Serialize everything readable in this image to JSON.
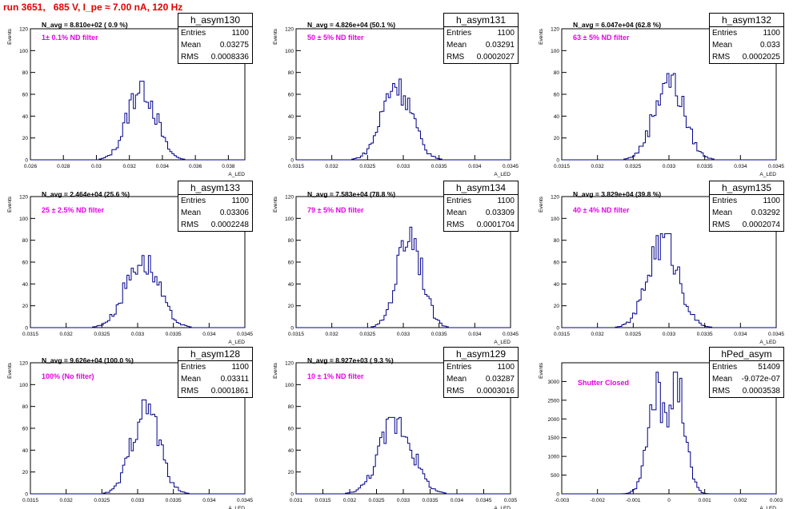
{
  "header": {
    "run_title": "run 3651,   685 V, I_pe ≈ 7.00 nA, 120 Hz"
  },
  "common": {
    "ylabel": "Events",
    "xlabel": "A_LED"
  },
  "colors": {
    "histogram": "#00008b",
    "title": "#e00000",
    "filter_label": "#e600e6"
  },
  "stats_keys": {
    "entries": "Entries",
    "mean": "Mean",
    "rms": "RMS"
  },
  "panels": [
    {
      "name": "h_asym130",
      "navg": "N_avg = 8.810e+02 ( 0.9 %)",
      "filter": "1± 0.1% ND filter",
      "entries": "1100",
      "mean": "0.03275",
      "rms": "0.0008336"
    },
    {
      "name": "h_asym131",
      "navg": "N_avg = 4.826e+04 (50.1 %)",
      "filter": "50 ± 5% ND filter",
      "entries": "1100",
      "mean": "0.03291",
      "rms": "0.0002027"
    },
    {
      "name": "h_asym132",
      "navg": "N_avg = 6.047e+04 (62.8 %)",
      "filter": "63 ± 5% ND filter",
      "entries": "1100",
      "mean": "0.033",
      "rms": "0.0002025"
    },
    {
      "name": "h_asym133",
      "navg": "N_avg = 2.464e+04 (25.6 %)",
      "filter": "25 ± 2.5% ND filter",
      "entries": "1100",
      "mean": "0.03306",
      "rms": "0.0002248"
    },
    {
      "name": "h_asym134",
      "navg": "N_avg = 7.583e+04 (78.8 %)",
      "filter": "79 ± 5% ND filter",
      "entries": "1100",
      "mean": "0.03309",
      "rms": "0.0001704"
    },
    {
      "name": "h_asym135",
      "navg": "N_avg = 3.829e+04 (39.8 %)",
      "filter": "40 ± 4% ND filter",
      "entries": "1100",
      "mean": "0.03292",
      "rms": "0.0002074"
    },
    {
      "name": "h_asym128",
      "navg": "N_avg = 9.626e+04 (100.0 %)",
      "filter": "100% (No filter)",
      "entries": "1100",
      "mean": "0.03311",
      "rms": "0.0001861"
    },
    {
      "name": "h_asym129",
      "navg": "N_avg = 8.927e+03 ( 9.3 %)",
      "filter": "10 ± 1% ND filter",
      "entries": "1100",
      "mean": "0.03287",
      "rms": "0.0003016"
    },
    {
      "name": "hPed_asym",
      "navg": "",
      "filter": "Shutter Closed",
      "entries": "51409",
      "mean": "-9.072e-07",
      "rms": "0.0003538"
    }
  ],
  "chart_data": [
    {
      "type": "bar",
      "title": "h_asym130",
      "xlim": [
        0.026,
        0.039
      ],
      "ylim": [
        0,
        120
      ],
      "xticks": [
        "0.026",
        "0.028",
        "0.03",
        "0.032",
        "0.034",
        "0.036",
        "0.038"
      ],
      "xtick_values": [
        0.026,
        0.028,
        0.03,
        0.032,
        0.034,
        0.036,
        0.038
      ],
      "yticks": [
        "0",
        "20",
        "40",
        "60",
        "80",
        "100",
        "120"
      ],
      "ytick_values": [
        0,
        20,
        40,
        60,
        80,
        100,
        120
      ],
      "series": [
        {
          "mean": 0.03275,
          "rms": 0.0008336,
          "peak": 72,
          "entries": 1100
        }
      ]
    },
    {
      "type": "bar",
      "title": "h_asym131",
      "xlim": [
        0.0315,
        0.0345
      ],
      "ylim": [
        0,
        120
      ],
      "xticks": [
        "0.0315",
        "0.032",
        "0.0325",
        "0.033",
        "0.0335",
        "0.034",
        "0.0345"
      ],
      "xtick_values": [
        0.0315,
        0.032,
        0.0325,
        0.033,
        0.0335,
        0.034,
        0.0345
      ],
      "yticks": [
        "0",
        "20",
        "40",
        "60",
        "80",
        "100",
        "120"
      ],
      "ytick_values": [
        0,
        20,
        40,
        60,
        80,
        100,
        120
      ],
      "series": [
        {
          "mean": 0.03291,
          "rms": 0.0002027,
          "peak": 74,
          "entries": 1100
        }
      ]
    },
    {
      "type": "bar",
      "title": "h_asym132",
      "xlim": [
        0.0315,
        0.0345
      ],
      "ylim": [
        0,
        120
      ],
      "xticks": [
        "0.0315",
        "0.032",
        "0.0325",
        "0.033",
        "0.0335",
        "0.034",
        "0.0345"
      ],
      "xtick_values": [
        0.0315,
        0.032,
        0.0325,
        0.033,
        0.0335,
        0.034,
        0.0345
      ],
      "yticks": [
        "0",
        "20",
        "40",
        "60",
        "80",
        "100",
        "120"
      ],
      "ytick_values": [
        0,
        20,
        40,
        60,
        80,
        100,
        120
      ],
      "series": [
        {
          "mean": 0.033,
          "rms": 0.0002025,
          "peak": 79,
          "entries": 1100
        }
      ]
    },
    {
      "type": "bar",
      "title": "h_asym133",
      "xlim": [
        0.0315,
        0.0345
      ],
      "ylim": [
        0,
        120
      ],
      "xticks": [
        "0.0315",
        "0.032",
        "0.0325",
        "0.033",
        "0.0335",
        "0.034",
        "0.0345"
      ],
      "xtick_values": [
        0.0315,
        0.032,
        0.0325,
        0.033,
        0.0335,
        0.034,
        0.0345
      ],
      "yticks": [
        "0",
        "20",
        "40",
        "60",
        "80",
        "100",
        "120"
      ],
      "ytick_values": [
        0,
        20,
        40,
        60,
        80,
        100,
        120
      ],
      "series": [
        {
          "mean": 0.03306,
          "rms": 0.0002248,
          "peak": 66,
          "entries": 1100
        }
      ]
    },
    {
      "type": "bar",
      "title": "h_asym134",
      "xlim": [
        0.0315,
        0.0345
      ],
      "ylim": [
        0,
        120
      ],
      "xticks": [
        "0.0315",
        "0.032",
        "0.0325",
        "0.033",
        "0.0335",
        "0.034",
        "0.0345"
      ],
      "xtick_values": [
        0.0315,
        0.032,
        0.0325,
        0.033,
        0.0335,
        0.034,
        0.0345
      ],
      "yticks": [
        "0",
        "20",
        "40",
        "60",
        "80",
        "100",
        "120"
      ],
      "ytick_values": [
        0,
        20,
        40,
        60,
        80,
        100,
        120
      ],
      "series": [
        {
          "mean": 0.03309,
          "rms": 0.0001704,
          "peak": 92,
          "entries": 1100
        }
      ]
    },
    {
      "type": "bar",
      "title": "h_asym135",
      "xlim": [
        0.0315,
        0.0345
      ],
      "ylim": [
        0,
        120
      ],
      "xticks": [
        "0.0315",
        "0.032",
        "0.0325",
        "0.033",
        "0.0335",
        "0.034",
        "0.0345"
      ],
      "xtick_values": [
        0.0315,
        0.032,
        0.0325,
        0.033,
        0.0335,
        0.034,
        0.0345
      ],
      "yticks": [
        "0",
        "20",
        "40",
        "60",
        "80",
        "100",
        "120"
      ],
      "ytick_values": [
        0,
        20,
        40,
        60,
        80,
        100,
        120
      ],
      "series": [
        {
          "mean": 0.03292,
          "rms": 0.0002074,
          "peak": 86,
          "entries": 1100
        }
      ]
    },
    {
      "type": "bar",
      "title": "h_asym128",
      "xlim": [
        0.0315,
        0.0345
      ],
      "ylim": [
        0,
        120
      ],
      "xticks": [
        "0.0315",
        "0.032",
        "0.0325",
        "0.033",
        "0.0335",
        "0.034",
        "0.0345"
      ],
      "xtick_values": [
        0.0315,
        0.032,
        0.0325,
        0.033,
        0.0335,
        0.034,
        0.0345
      ],
      "yticks": [
        "0",
        "20",
        "40",
        "60",
        "80",
        "100",
        "120"
      ],
      "ytick_values": [
        0,
        20,
        40,
        60,
        80,
        100,
        120
      ],
      "series": [
        {
          "mean": 0.03311,
          "rms": 0.0001861,
          "peak": 86,
          "entries": 1100
        }
      ]
    },
    {
      "type": "bar",
      "title": "h_asym129",
      "xlim": [
        0.031,
        0.035
      ],
      "ylim": [
        0,
        120
      ],
      "xticks": [
        "0.031",
        "0.0315",
        "0.032",
        "0.0325",
        "0.033",
        "0.0335",
        "0.034",
        "0.0345",
        "0.035"
      ],
      "xtick_values": [
        0.031,
        0.0315,
        0.032,
        0.0325,
        0.033,
        0.0335,
        0.034,
        0.0345,
        0.035
      ],
      "yticks": [
        "0",
        "20",
        "40",
        "60",
        "80",
        "100",
        "120"
      ],
      "ytick_values": [
        0,
        20,
        40,
        60,
        80,
        100,
        120
      ],
      "series": [
        {
          "mean": 0.03287,
          "rms": 0.0003016,
          "peak": 70,
          "entries": 1100
        }
      ]
    },
    {
      "type": "bar",
      "title": "hPed_asym",
      "xlim": [
        -0.003,
        0.003
      ],
      "ylim": [
        0,
        3500
      ],
      "xticks": [
        "-0.003",
        "-0.002",
        "-0.001",
        "0",
        "0.001",
        "0.002",
        "0.003"
      ],
      "xtick_values": [
        -0.003,
        -0.002,
        -0.001,
        0,
        0.001,
        0.002,
        0.003
      ],
      "yticks": [
        "0",
        "500",
        "1000",
        "1500",
        "2000",
        "2500",
        "3000"
      ],
      "ytick_values": [
        0,
        500,
        1000,
        1500,
        2000,
        2500,
        3000
      ],
      "series": [
        {
          "mean": -9.072e-07,
          "rms": 0.0003538,
          "peak": 3250,
          "entries": 51409,
          "shape": "double-peak"
        }
      ]
    }
  ]
}
